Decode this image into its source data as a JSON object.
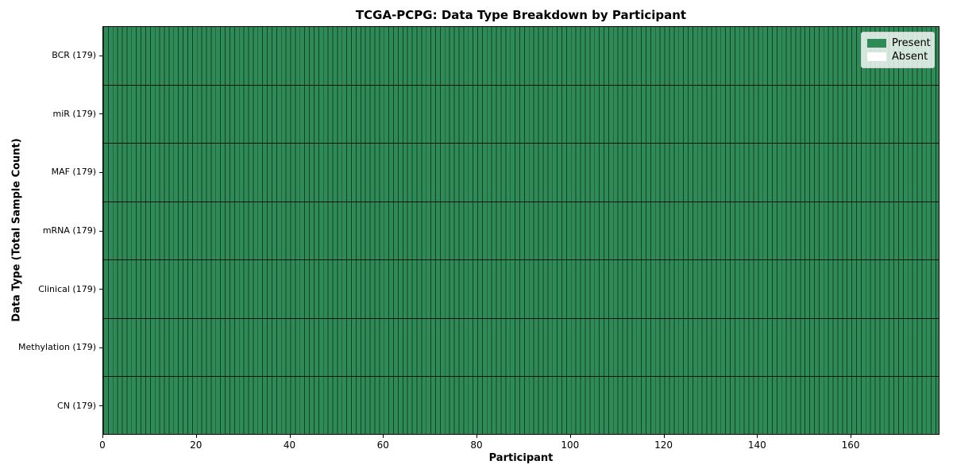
{
  "figure": {
    "title": "TCGA-PCPG: Data Type Breakdown by Participant",
    "xlabel": "Participant",
    "ylabel": "Data Type (Total Sample Count)"
  },
  "chart_data": {
    "type": "heatmap",
    "title": "TCGA-PCPG: Data Type Breakdown by Participant",
    "xlabel": "Participant",
    "ylabel": "Data Type (Total Sample Count)",
    "x_axis": {
      "min": 0,
      "max": 179,
      "ticks": [
        0,
        20,
        40,
        60,
        80,
        100,
        120,
        140,
        160
      ]
    },
    "n_participants": 179,
    "rows": [
      {
        "label": "BCR (179)",
        "data_type": "BCR",
        "total_samples": 179,
        "present_count": 179,
        "absent_count": 0
      },
      {
        "label": "miR (179)",
        "data_type": "miR",
        "total_samples": 179,
        "present_count": 179,
        "absent_count": 0
      },
      {
        "label": "MAF (179)",
        "data_type": "MAF",
        "total_samples": 179,
        "present_count": 179,
        "absent_count": 0
      },
      {
        "label": "mRNA (179)",
        "data_type": "mRNA",
        "total_samples": 179,
        "present_count": 179,
        "absent_count": 0
      },
      {
        "label": "Clinical (179)",
        "data_type": "Clinical",
        "total_samples": 179,
        "present_count": 179,
        "absent_count": 0
      },
      {
        "label": "Methylation (179)",
        "data_type": "Methylation",
        "total_samples": 179,
        "present_count": 179,
        "absent_count": 0
      },
      {
        "label": "CN (179)",
        "data_type": "CN",
        "total_samples": 179,
        "present_count": 179,
        "absent_count": 0
      }
    ],
    "all_cells_present": true,
    "legend": {
      "position": "upper right",
      "entries": [
        {
          "label": "Present",
          "color": "#2e8b57"
        },
        {
          "label": "Absent",
          "color": "#ffffff"
        }
      ]
    },
    "grid": true,
    "colors": {
      "present": "#2e8b57",
      "absent": "#ffffff",
      "cell_edge": "#1d4a33",
      "row_divider": "#000000",
      "legend_border": "#cfcfcf"
    }
  }
}
